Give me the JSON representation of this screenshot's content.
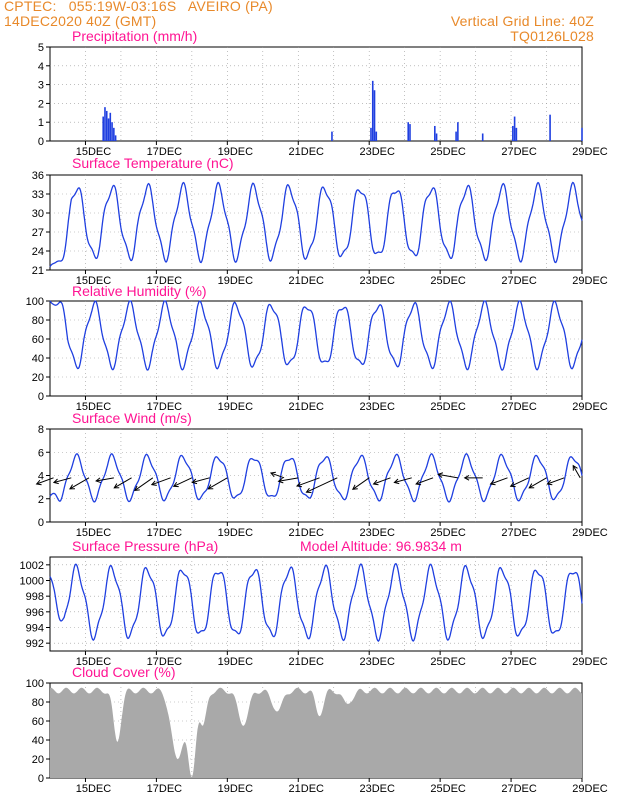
{
  "header": {
    "line1": "CPTEC:   055:19W-03:16S   AVEIRO (PA)",
    "line2": "14DEC2020 40Z (GMT)",
    "grid_note": "Vertical Grid Line: 40Z",
    "code": "TQ0126L028"
  },
  "colors": {
    "header": "#e8892a",
    "title": "#ff1493",
    "series": "#1f3fe0",
    "cloud": "#a9a9a9",
    "grid": "#999999"
  },
  "x_axis": {
    "start": "14DEC",
    "end": "29DEC",
    "ticks": [
      "15DEC",
      "17DEC",
      "19DEC",
      "21DEC",
      "23DEC",
      "25DEC",
      "27DEC",
      "29DEC"
    ]
  },
  "chart_data": [
    {
      "type": "bar",
      "title": "Precipitation (mm/h)",
      "ylim": [
        0,
        5
      ],
      "yticks": [
        "0",
        "1",
        "2",
        "3",
        "4",
        "5"
      ],
      "bars": [
        {
          "day": 15.5,
          "value": 1.3
        },
        {
          "day": 15.55,
          "value": 1.8
        },
        {
          "day": 15.6,
          "value": 1.6
        },
        {
          "day": 15.65,
          "value": 1.2
        },
        {
          "day": 15.7,
          "value": 1.5
        },
        {
          "day": 15.75,
          "value": 1.0
        },
        {
          "day": 15.8,
          "value": 0.7
        },
        {
          "day": 15.85,
          "value": 0.3
        },
        {
          "day": 21.95,
          "value": 0.5
        },
        {
          "day": 23.05,
          "value": 0.7
        },
        {
          "day": 23.1,
          "value": 3.2
        },
        {
          "day": 23.15,
          "value": 2.7
        },
        {
          "day": 23.2,
          "value": 0.5
        },
        {
          "day": 24.1,
          "value": 1.0
        },
        {
          "day": 24.15,
          "value": 0.9
        },
        {
          "day": 24.85,
          "value": 0.8
        },
        {
          "day": 24.9,
          "value": 0.4
        },
        {
          "day": 25.45,
          "value": 0.5
        },
        {
          "day": 25.5,
          "value": 1.0
        },
        {
          "day": 26.2,
          "value": 0.4
        },
        {
          "day": 27.05,
          "value": 0.8
        },
        {
          "day": 27.1,
          "value": 1.3
        },
        {
          "day": 27.15,
          "value": 0.7
        },
        {
          "day": 28.1,
          "value": 1.4
        },
        {
          "day": 29.0,
          "value": 0.7
        }
      ]
    },
    {
      "type": "line",
      "title": "Surface Temperature (nC)",
      "ylim": [
        21,
        36
      ],
      "yticks": [
        "21",
        "24",
        "27",
        "30",
        "33",
        "36"
      ],
      "base": 28.5,
      "amp": 5.5,
      "start_value": 21.5,
      "start_fade": 0.6
    },
    {
      "type": "line",
      "title": "Relative Humidity (%)",
      "ylim": [
        0,
        100
      ],
      "yticks": [
        "0",
        "20",
        "40",
        "60",
        "80",
        "100"
      ],
      "base": 64,
      "amp": -32,
      "start_value": 100,
      "start_fade": 0.5
    },
    {
      "type": "line",
      "title": "Surface Wind (m/s)",
      "ylim": [
        0,
        8
      ],
      "yticks": [
        "0",
        "2",
        "4",
        "6",
        "8"
      ],
      "base": 3.8,
      "amp": 1.8,
      "start_value": 2.2,
      "start_fade": 0.3,
      "arrows": [
        {
          "day": 14.1,
          "dir": 200,
          "len": 18
        },
        {
          "day": 14.6,
          "dir": 195,
          "len": 18
        },
        {
          "day": 15.1,
          "dir": 210,
          "len": 22
        },
        {
          "day": 15.8,
          "dir": 190,
          "len": 18
        },
        {
          "day": 16.3,
          "dir": 210,
          "len": 20
        },
        {
          "day": 16.9,
          "dir": 215,
          "len": 22
        },
        {
          "day": 17.4,
          "dir": 200,
          "len": 20
        },
        {
          "day": 18.0,
          "dir": 205,
          "len": 20
        },
        {
          "day": 18.5,
          "dir": 195,
          "len": 18
        },
        {
          "day": 19.0,
          "dir": 210,
          "len": 22
        },
        {
          "day": 20.6,
          "dir": 160,
          "len": 14
        },
        {
          "day": 21.0,
          "dir": 190,
          "len": 20
        },
        {
          "day": 21.6,
          "dir": 200,
          "len": 24
        },
        {
          "day": 22.1,
          "dir": 205,
          "len": 34
        },
        {
          "day": 23.0,
          "dir": 215,
          "len": 20
        },
        {
          "day": 23.6,
          "dir": 200,
          "len": 18
        },
        {
          "day": 24.2,
          "dir": 195,
          "len": 18
        },
        {
          "day": 24.8,
          "dir": 200,
          "len": 18
        },
        {
          "day": 25.5,
          "dir": 170,
          "len": 20
        },
        {
          "day": 26.2,
          "dir": 180,
          "len": 18
        },
        {
          "day": 26.9,
          "dir": 200,
          "len": 18
        },
        {
          "day": 27.5,
          "dir": 205,
          "len": 20
        },
        {
          "day": 28.0,
          "dir": 210,
          "len": 20
        },
        {
          "day": 28.5,
          "dir": 200,
          "len": 18
        },
        {
          "day": 28.95,
          "dir": 120,
          "len": 14
        }
      ]
    },
    {
      "type": "line",
      "title": "Surface Pressure (hPa)",
      "extra_label": "Model Altitude: 96.9834 m",
      "ylim": [
        991,
        1003
      ],
      "yticks": [
        "992",
        "994",
        "996",
        "998",
        "1000",
        "1002"
      ],
      "base": 997.2,
      "amp": 4.3,
      "start_value": 1000.5,
      "start_fade": 0.4
    },
    {
      "type": "area",
      "title": "Cloud Cover (%)",
      "ylim": [
        0,
        100
      ],
      "yticks": [
        "0",
        "20",
        "40",
        "60",
        "80",
        "100"
      ],
      "dips": [
        {
          "day": 15.9,
          "value": 38,
          "width": 0.15
        },
        {
          "day": 17.6,
          "value": 20,
          "width": 0.25
        },
        {
          "day": 18.0,
          "value": 0,
          "width": 0.18
        },
        {
          "day": 18.3,
          "value": 55,
          "width": 0.15
        },
        {
          "day": 19.45,
          "value": 55,
          "width": 0.2
        },
        {
          "day": 20.4,
          "value": 70,
          "width": 0.2
        },
        {
          "day": 21.6,
          "value": 65,
          "width": 0.15
        },
        {
          "day": 22.4,
          "value": 78,
          "width": 0.2
        }
      ],
      "level": 92
    }
  ]
}
